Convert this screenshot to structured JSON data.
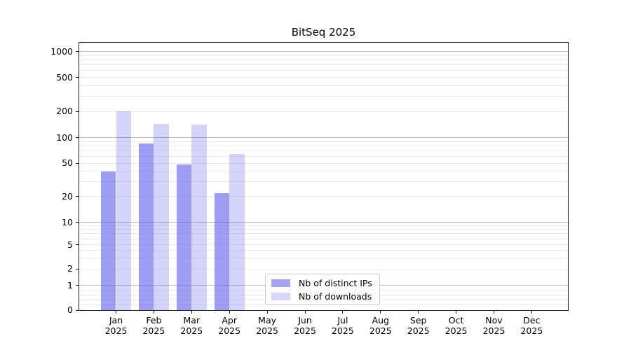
{
  "chart_data": {
    "type": "bar",
    "title": "BitSeq 2025",
    "xlabel": "",
    "ylabel": "",
    "categories": [
      "Jan",
      "Feb",
      "Mar",
      "Apr",
      "May",
      "Jun",
      "Jul",
      "Aug",
      "Sep",
      "Oct",
      "Nov",
      "Dec"
    ],
    "category_year": "2025",
    "series": [
      {
        "name": "Nb of distinct IPs",
        "swatch_color": "#a3a3f1",
        "fill_rgba": "rgba(97,97,236,0.62)",
        "values": [
          40,
          85,
          48,
          22,
          0,
          0,
          0,
          0,
          0,
          0,
          0,
          0
        ]
      },
      {
        "name": "Nb of downloads",
        "swatch_color": "#d7d7f9",
        "fill_rgba": "rgba(97,97,236,0.27)",
        "values": [
          200,
          145,
          140,
          64,
          0,
          0,
          0,
          0,
          0,
          0,
          0,
          0
        ]
      }
    ],
    "yscale": "asinh-log",
    "yticks": [
      0,
      1,
      2,
      5,
      10,
      20,
      50,
      100,
      200,
      500,
      1000
    ],
    "ylim": [
      0,
      1270
    ],
    "grid": "both",
    "legend_position": "lower-center-inside",
    "colors": {
      "major_grid": "#bcbcbc",
      "minor_grid": "#ebebeb",
      "axis": "#1a1a1a",
      "legend_border": "#cccccc",
      "background": "#ffffff",
      "text": "#000000"
    }
  }
}
